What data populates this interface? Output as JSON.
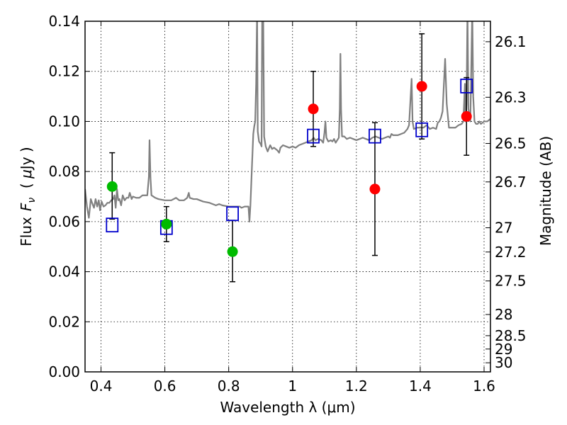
{
  "chart_data": {
    "type": "scatter",
    "xlabel": "Wavelength  λ (μm)",
    "ylabel": "Flux  F_ν  ( μJy )",
    "ylabel_parts": {
      "pre": "Flux",
      "sym": "F",
      "sub": "ν",
      "mid": "  ( ",
      "mu": "μ",
      "post": "Jy )"
    },
    "y2label": "Magnitude (AB)",
    "xlim": [
      0.35,
      1.62
    ],
    "ylim": [
      0.0,
      0.14
    ],
    "grid": true,
    "x_ticks": [
      {
        "value": 0.4,
        "label": "0.4"
      },
      {
        "value": 0.6,
        "label": "0.6"
      },
      {
        "value": 0.8,
        "label": "0.8"
      },
      {
        "value": 1.0,
        "label": "1"
      },
      {
        "value": 1.2,
        "label": "1.2"
      },
      {
        "value": 1.4,
        "label": "1.4"
      },
      {
        "value": 1.6,
        "label": "1.6"
      }
    ],
    "y_ticks": [
      {
        "value": 0.0,
        "label": "0.00"
      },
      {
        "value": 0.02,
        "label": "0.02"
      },
      {
        "value": 0.04,
        "label": "0.04"
      },
      {
        "value": 0.06,
        "label": "0.06"
      },
      {
        "value": 0.08,
        "label": "0.08"
      },
      {
        "value": 0.1,
        "label": "0.10"
      },
      {
        "value": 0.12,
        "label": "0.12"
      },
      {
        "value": 0.14,
        "label": "0.14"
      }
    ],
    "y2_ticks": [
      {
        "value": 26.1,
        "label": "26.1"
      },
      {
        "value": 26.3,
        "label": "26.3"
      },
      {
        "value": 26.5,
        "label": "26.5"
      },
      {
        "value": 26.7,
        "label": "26.7"
      },
      {
        "value": 27.0,
        "label": "27"
      },
      {
        "value": 27.2,
        "label": "27.2"
      },
      {
        "value": 27.5,
        "label": "27.5"
      },
      {
        "value": 28.0,
        "label": "28"
      },
      {
        "value": 28.5,
        "label": "28.5"
      },
      {
        "value": 29.0,
        "label": "29"
      },
      {
        "value": 30.0,
        "label": "30"
      }
    ],
    "series": [
      {
        "kind": "line",
        "color": "#808080",
        "points": [
          [
            0.35,
            0.073
          ],
          [
            0.356,
            0.066
          ],
          [
            0.362,
            0.0615
          ],
          [
            0.368,
            0.069
          ],
          [
            0.372,
            0.0675
          ],
          [
            0.378,
            0.0655
          ],
          [
            0.383,
            0.069
          ],
          [
            0.388,
            0.066
          ],
          [
            0.393,
            0.0685
          ],
          [
            0.397,
            0.0645
          ],
          [
            0.402,
            0.068
          ],
          [
            0.408,
            0.066
          ],
          [
            0.414,
            0.0665
          ],
          [
            0.42,
            0.0675
          ],
          [
            0.426,
            0.0675
          ],
          [
            0.432,
            0.0685
          ],
          [
            0.438,
            0.069
          ],
          [
            0.442,
            0.0705
          ],
          [
            0.446,
            0.0655
          ],
          [
            0.45,
            0.073
          ],
          [
            0.454,
            0.0685
          ],
          [
            0.458,
            0.069
          ],
          [
            0.463,
            0.0665
          ],
          [
            0.468,
            0.0705
          ],
          [
            0.474,
            0.0685
          ],
          [
            0.48,
            0.0695
          ],
          [
            0.486,
            0.0695
          ],
          [
            0.49,
            0.0715
          ],
          [
            0.496,
            0.069
          ],
          [
            0.5,
            0.07
          ],
          [
            0.51,
            0.0695
          ],
          [
            0.52,
            0.0695
          ],
          [
            0.53,
            0.0705
          ],
          [
            0.54,
            0.0705
          ],
          [
            0.545,
            0.0705
          ],
          [
            0.55,
            0.078
          ],
          [
            0.552,
            0.0925
          ],
          [
            0.555,
            0.0775
          ],
          [
            0.558,
            0.0705
          ],
          [
            0.57,
            0.0695
          ],
          [
            0.58,
            0.069
          ],
          [
            0.6,
            0.0685
          ],
          [
            0.62,
            0.0685
          ],
          [
            0.635,
            0.0695
          ],
          [
            0.645,
            0.0685
          ],
          [
            0.66,
            0.0685
          ],
          [
            0.67,
            0.0695
          ],
          [
            0.675,
            0.0715
          ],
          [
            0.678,
            0.0695
          ],
          [
            0.69,
            0.069
          ],
          [
            0.7,
            0.069
          ],
          [
            0.72,
            0.068
          ],
          [
            0.74,
            0.0675
          ],
          [
            0.75,
            0.067
          ],
          [
            0.76,
            0.0665
          ],
          [
            0.77,
            0.067
          ],
          [
            0.78,
            0.0665
          ],
          [
            0.8,
            0.066
          ],
          [
            0.82,
            0.066
          ],
          [
            0.835,
            0.066
          ],
          [
            0.84,
            0.0655
          ],
          [
            0.85,
            0.066
          ],
          [
            0.862,
            0.066
          ],
          [
            0.865,
            0.06
          ],
          [
            0.868,
            0.0665
          ],
          [
            0.873,
            0.0825
          ],
          [
            0.877,
            0.095
          ],
          [
            0.88,
            0.098
          ],
          [
            0.883,
            0.1
          ],
          [
            0.886,
            0.115
          ],
          [
            0.889,
            0.145
          ],
          [
            0.891,
            0.096
          ],
          [
            0.895,
            0.092
          ],
          [
            0.9,
            0.091
          ],
          [
            0.903,
            0.09
          ],
          [
            0.905,
            0.145
          ],
          [
            0.908,
            0.145
          ],
          [
            0.911,
            0.094
          ],
          [
            0.916,
            0.09
          ],
          [
            0.922,
            0.088
          ],
          [
            0.93,
            0.0905
          ],
          [
            0.936,
            0.089
          ],
          [
            0.942,
            0.0895
          ],
          [
            0.952,
            0.0885
          ],
          [
            0.958,
            0.0875
          ],
          [
            0.962,
            0.0895
          ],
          [
            0.97,
            0.0905
          ],
          [
            0.98,
            0.09
          ],
          [
            0.99,
            0.0895
          ],
          [
            1.0,
            0.09
          ],
          [
            1.01,
            0.0895
          ],
          [
            1.02,
            0.0905
          ],
          [
            1.03,
            0.091
          ],
          [
            1.04,
            0.0915
          ],
          [
            1.05,
            0.092
          ],
          [
            1.06,
            0.0925
          ],
          [
            1.066,
            0.0935
          ],
          [
            1.072,
            0.0925
          ],
          [
            1.08,
            0.093
          ],
          [
            1.09,
            0.0925
          ],
          [
            1.096,
            0.0915
          ],
          [
            1.1,
            0.0955
          ],
          [
            1.103,
            0.1
          ],
          [
            1.106,
            0.0935
          ],
          [
            1.112,
            0.092
          ],
          [
            1.12,
            0.0925
          ],
          [
            1.125,
            0.092
          ],
          [
            1.13,
            0.093
          ],
          [
            1.135,
            0.0915
          ],
          [
            1.14,
            0.0925
          ],
          [
            1.145,
            0.0935
          ],
          [
            1.148,
            0.105
          ],
          [
            1.15,
            0.127
          ],
          [
            1.152,
            0.105
          ],
          [
            1.155,
            0.094
          ],
          [
            1.162,
            0.094
          ],
          [
            1.17,
            0.093
          ],
          [
            1.18,
            0.0935
          ],
          [
            1.19,
            0.093
          ],
          [
            1.2,
            0.0925
          ],
          [
            1.21,
            0.093
          ],
          [
            1.22,
            0.0935
          ],
          [
            1.23,
            0.093
          ],
          [
            1.24,
            0.0925
          ],
          [
            1.25,
            0.0935
          ],
          [
            1.26,
            0.094
          ],
          [
            1.27,
            0.0935
          ],
          [
            1.28,
            0.093
          ],
          [
            1.29,
            0.0935
          ],
          [
            1.3,
            0.094
          ],
          [
            1.305,
            0.0935
          ],
          [
            1.31,
            0.095
          ],
          [
            1.315,
            0.0945
          ],
          [
            1.32,
            0.0945
          ],
          [
            1.33,
            0.0945
          ],
          [
            1.34,
            0.095
          ],
          [
            1.35,
            0.0955
          ],
          [
            1.36,
            0.097
          ],
          [
            1.365,
            0.0985
          ],
          [
            1.37,
            0.11
          ],
          [
            1.373,
            0.117
          ],
          [
            1.376,
            0.1
          ],
          [
            1.38,
            0.097
          ],
          [
            1.39,
            0.0975
          ],
          [
            1.4,
            0.0975
          ],
          [
            1.41,
            0.0975
          ],
          [
            1.42,
            0.0985
          ],
          [
            1.43,
            0.097
          ],
          [
            1.44,
            0.0975
          ],
          [
            1.45,
            0.097
          ],
          [
            1.455,
            0.0995
          ],
          [
            1.46,
            0.1
          ],
          [
            1.465,
            0.1015
          ],
          [
            1.47,
            0.104
          ],
          [
            1.478,
            0.125
          ],
          [
            1.483,
            0.107
          ],
          [
            1.49,
            0.0975
          ],
          [
            1.5,
            0.0975
          ],
          [
            1.51,
            0.0975
          ],
          [
            1.52,
            0.0985
          ],
          [
            1.53,
            0.099
          ],
          [
            1.535,
            0.1
          ],
          [
            1.54,
            0.115
          ],
          [
            1.542,
            0.1
          ],
          [
            1.545,
            0.107
          ],
          [
            1.548,
            0.145
          ],
          [
            1.551,
            0.105
          ],
          [
            1.557,
            0.1
          ],
          [
            1.563,
            0.145
          ],
          [
            1.566,
            0.11
          ],
          [
            1.57,
            0.1
          ],
          [
            1.575,
            0.099
          ],
          [
            1.58,
            0.099
          ],
          [
            1.585,
            0.1
          ],
          [
            1.59,
            0.099
          ],
          [
            1.6,
            0.1
          ],
          [
            1.61,
            0.1
          ],
          [
            1.62,
            0.101
          ]
        ]
      },
      {
        "kind": "scatter",
        "marker": "square",
        "color": "#0000cc",
        "points": [
          [
            0.435,
            0.0585
          ],
          [
            0.605,
            0.0575
          ],
          [
            0.812,
            0.063
          ],
          [
            1.065,
            0.094
          ],
          [
            1.258,
            0.094
          ],
          [
            1.405,
            0.0965
          ],
          [
            1.545,
            0.114
          ]
        ]
      },
      {
        "kind": "scatter",
        "marker": "circle",
        "color": "#00bb00",
        "points": [
          {
            "x": 0.435,
            "y": 0.074,
            "ylo": 0.061,
            "yhi": 0.0875
          },
          {
            "x": 0.605,
            "y": 0.059,
            "ylo": 0.052,
            "yhi": 0.066
          },
          {
            "x": 0.812,
            "y": 0.048,
            "ylo": 0.036,
            "yhi": 0.0605
          }
        ]
      },
      {
        "kind": "scatter",
        "marker": "circle",
        "color": "#ff0000",
        "points": [
          {
            "x": 1.065,
            "y": 0.105,
            "ylo": 0.09,
            "yhi": 0.12
          },
          {
            "x": 1.258,
            "y": 0.073,
            "ylo": 0.0465,
            "yhi": 0.0995
          },
          {
            "x": 1.405,
            "y": 0.114,
            "ylo": 0.093,
            "yhi": 0.135
          },
          {
            "x": 1.545,
            "y": 0.102,
            "ylo": 0.0865,
            "yhi": 0.1175
          }
        ]
      }
    ]
  }
}
